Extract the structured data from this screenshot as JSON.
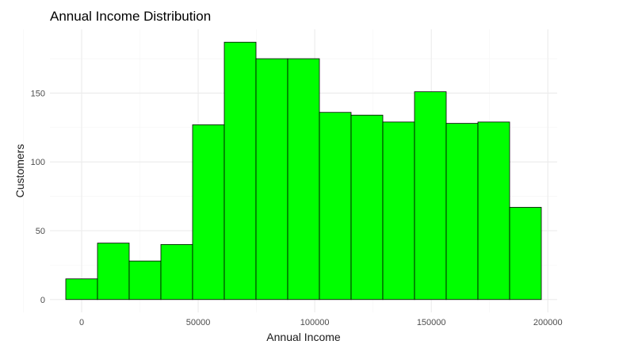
{
  "chart_data": {
    "type": "bar",
    "title": "Annual Income Distribution",
    "xlabel": "Annual Income",
    "ylabel": "Customers",
    "bin_width": 13600,
    "bins": [
      {
        "start": -6800,
        "end": 6800,
        "count": 15
      },
      {
        "start": 6800,
        "end": 20400,
        "count": 41
      },
      {
        "start": 20400,
        "end": 34000,
        "count": 28
      },
      {
        "start": 34000,
        "end": 47600,
        "count": 40
      },
      {
        "start": 47600,
        "end": 61200,
        "count": 127
      },
      {
        "start": 61200,
        "end": 74800,
        "count": 187
      },
      {
        "start": 74800,
        "end": 88400,
        "count": 175
      },
      {
        "start": 88400,
        "end": 102000,
        "count": 175
      },
      {
        "start": 102000,
        "end": 115600,
        "count": 136
      },
      {
        "start": 115600,
        "end": 129200,
        "count": 134
      },
      {
        "start": 129200,
        "end": 142800,
        "count": 129
      },
      {
        "start": 142800,
        "end": 156400,
        "count": 151
      },
      {
        "start": 156400,
        "end": 170000,
        "count": 128
      },
      {
        "start": 170000,
        "end": 183600,
        "count": 129
      },
      {
        "start": 183600,
        "end": 197200,
        "count": 67
      }
    ],
    "xlim": [
      -13600,
      204000
    ],
    "ylim": [
      -9.35,
      196.35
    ],
    "x_ticks": [
      0,
      50000,
      100000,
      150000,
      200000
    ],
    "x_tick_labels": [
      "0",
      "50000",
      "100000",
      "150000",
      "200000"
    ],
    "y_ticks": [
      0,
      50,
      100,
      150
    ],
    "y_tick_labels": [
      "0",
      "50",
      "100",
      "150"
    ],
    "grid": true,
    "colors": {
      "fill": "#00ff00",
      "outline": "#000000",
      "grid_major": "#ebebeb",
      "grid_minor": "#f5f5f5"
    }
  }
}
